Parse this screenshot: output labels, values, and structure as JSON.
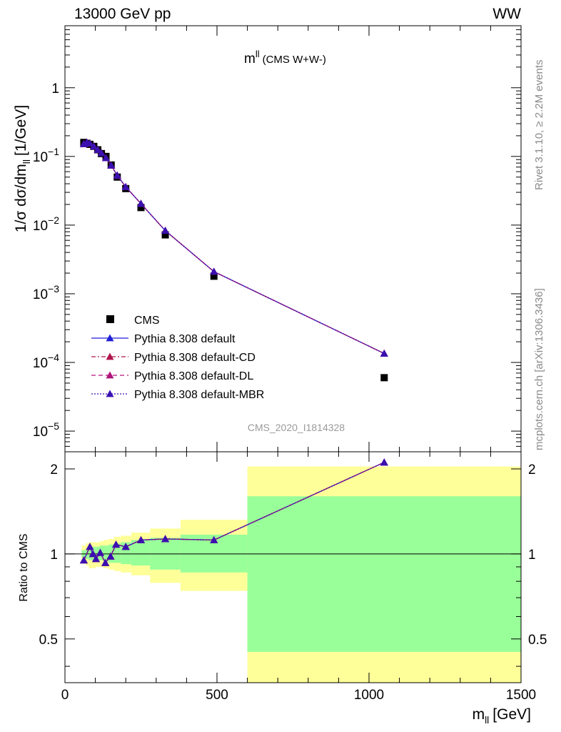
{
  "header": {
    "left": "13000 GeV pp",
    "right": "WW"
  },
  "side_labels": {
    "rivet": "Rivet 3.1.10, ≥ 2.2M events",
    "mcplots": "mcplots.cern.ch [arXiv:1306.3436]"
  },
  "analysis_id": "CMS_2020_I1814328",
  "colors": {
    "data": "#000000",
    "default": "#1f1fd6",
    "default_CD": "#b0154d",
    "default_DL": "#b0157a",
    "default_MBR": "#3a10b0",
    "band_inner": "#99ff99",
    "band_outer": "#ffff99"
  },
  "chart_data": [
    {
      "type": "scatter",
      "panel": "main",
      "title": "m",
      "title_sup": "ll",
      "title_suffix": "(CMS W+W-)",
      "xlabel": "m",
      "xlabel_sub": "ll",
      "xlabel_unit": "[GeV]",
      "ylabel": "1/σ dσ/dm",
      "ylabel_sub": "ll",
      "ylabel_unit": "[1/GeV]",
      "xlim": [
        0,
        1500
      ],
      "ylim": [
        5e-06,
        8
      ],
      "yscale": "log",
      "legend_position": "left-bottom",
      "yticks": [
        {
          "v": 1e-05,
          "base": "10",
          "exp": "−5"
        },
        {
          "v": 0.0001,
          "base": "10",
          "exp": "−4"
        },
        {
          "v": 0.001,
          "base": "10",
          "exp": "−3"
        },
        {
          "v": 0.01,
          "base": "10",
          "exp": "−2"
        },
        {
          "v": 0.1,
          "base": "10",
          "exp": "−1"
        },
        {
          "v": 1,
          "base": "1",
          "exp": ""
        }
      ],
      "series": [
        {
          "name": "CMS",
          "style": "data",
          "x": [
            62,
            72,
            82,
            95,
            108,
            120,
            135,
            152,
            172,
            200,
            250,
            330,
            490,
            1050
          ],
          "y": [
            0.16,
            0.155,
            0.15,
            0.14,
            0.125,
            0.11,
            0.1,
            0.075,
            0.05,
            0.034,
            0.018,
            0.0072,
            0.0018,
            6e-05
          ]
        },
        {
          "name": "Pythia 8.308 default",
          "style": "solid",
          "x": [
            62,
            72,
            82,
            95,
            108,
            120,
            135,
            152,
            172,
            200,
            250,
            330,
            490,
            1050
          ],
          "y": [
            0.152,
            0.16,
            0.155,
            0.14,
            0.125,
            0.112,
            0.095,
            0.074,
            0.053,
            0.036,
            0.0205,
            0.0083,
            0.0021,
            0.000135
          ]
        },
        {
          "name": "Pythia 8.308 default-CD",
          "style": "dashdot",
          "x": [
            62,
            72,
            82,
            95,
            108,
            120,
            135,
            152,
            172,
            200,
            250,
            330,
            490,
            1050
          ],
          "y": [
            0.152,
            0.16,
            0.155,
            0.14,
            0.125,
            0.112,
            0.095,
            0.074,
            0.053,
            0.036,
            0.0205,
            0.0083,
            0.0021,
            0.000135
          ]
        },
        {
          "name": "Pythia 8.308 default-DL",
          "style": "dashed",
          "x": [
            62,
            72,
            82,
            95,
            108,
            120,
            135,
            152,
            172,
            200,
            250,
            330,
            490,
            1050
          ],
          "y": [
            0.152,
            0.16,
            0.155,
            0.14,
            0.125,
            0.112,
            0.095,
            0.074,
            0.053,
            0.036,
            0.0205,
            0.0083,
            0.0021,
            0.000135
          ]
        },
        {
          "name": "Pythia 8.308 default-MBR",
          "style": "dotted",
          "x": [
            62,
            72,
            82,
            95,
            108,
            120,
            135,
            152,
            172,
            200,
            250,
            330,
            490,
            1050
          ],
          "y": [
            0.152,
            0.16,
            0.155,
            0.14,
            0.125,
            0.112,
            0.095,
            0.074,
            0.053,
            0.036,
            0.0205,
            0.0083,
            0.0021,
            0.000135
          ]
        }
      ]
    },
    {
      "type": "line",
      "panel": "ratio",
      "ylabel": "Ratio to CMS",
      "xlim": [
        0,
        1500
      ],
      "ylim": [
        0.35,
        2.3
      ],
      "yscale": "log",
      "xticks": [
        {
          "v": 0,
          "label": "0"
        },
        {
          "v": 500,
          "label": "500"
        },
        {
          "v": 1000,
          "label": "1000"
        },
        {
          "v": 1500,
          "label": "1500"
        }
      ],
      "yticks": [
        {
          "v": 0.5,
          "label": "0.5"
        },
        {
          "v": 1,
          "label": "1"
        },
        {
          "v": 2,
          "label": "2"
        }
      ],
      "bands": [
        {
          "x0": 55,
          "x1": 68,
          "inner": [
            0.97,
            1.03
          ],
          "outer": [
            0.93,
            1.07
          ]
        },
        {
          "x0": 68,
          "x1": 78,
          "inner": [
            0.96,
            1.04
          ],
          "outer": [
            0.91,
            1.09
          ]
        },
        {
          "x0": 78,
          "x1": 88,
          "inner": [
            0.95,
            1.05
          ],
          "outer": [
            0.89,
            1.1
          ]
        },
        {
          "x0": 88,
          "x1": 102,
          "inner": [
            0.95,
            1.06
          ],
          "outer": [
            0.89,
            1.1
          ]
        },
        {
          "x0": 102,
          "x1": 115,
          "inner": [
            0.95,
            1.06
          ],
          "outer": [
            0.9,
            1.1
          ]
        },
        {
          "x0": 115,
          "x1": 127,
          "inner": [
            0.95,
            1.07
          ],
          "outer": [
            0.9,
            1.11
          ]
        },
        {
          "x0": 127,
          "x1": 144,
          "inner": [
            0.94,
            1.07
          ],
          "outer": [
            0.89,
            1.12
          ]
        },
        {
          "x0": 144,
          "x1": 161,
          "inner": [
            0.93,
            1.08
          ],
          "outer": [
            0.88,
            1.13
          ]
        },
        {
          "x0": 161,
          "x1": 184,
          "inner": [
            0.93,
            1.09
          ],
          "outer": [
            0.87,
            1.15
          ]
        },
        {
          "x0": 184,
          "x1": 218,
          "inner": [
            0.92,
            1.1
          ],
          "outer": [
            0.86,
            1.16
          ]
        },
        {
          "x0": 218,
          "x1": 280,
          "inner": [
            0.91,
            1.12
          ],
          "outer": [
            0.84,
            1.19
          ]
        },
        {
          "x0": 280,
          "x1": 380,
          "inner": [
            0.88,
            1.14
          ],
          "outer": [
            0.79,
            1.23
          ]
        },
        {
          "x0": 380,
          "x1": 600,
          "inner": [
            0.86,
            1.17
          ],
          "outer": [
            0.74,
            1.32
          ]
        },
        {
          "x0": 600,
          "x1": 1500,
          "inner": [
            0.45,
            1.6
          ],
          "outer": [
            0.35,
            2.04
          ]
        }
      ],
      "series": [
        {
          "name": "Pythia 8.308 default",
          "style": "solid",
          "x": [
            62,
            82,
            92,
            102,
            116,
            133,
            150,
            168,
            200,
            250,
            330,
            490,
            1050
          ],
          "y": [
            0.95,
            1.06,
            1.0,
            0.96,
            1.01,
            0.93,
            0.98,
            1.08,
            1.06,
            1.12,
            1.13,
            1.12,
            2.11
          ]
        },
        {
          "name": "Pythia 8.308 default-CD",
          "style": "dashdot",
          "x": [
            62,
            82,
            92,
            102,
            116,
            133,
            150,
            168,
            200,
            250,
            330,
            490,
            1050
          ],
          "y": [
            0.95,
            1.06,
            1.0,
            0.96,
            1.01,
            0.93,
            0.98,
            1.08,
            1.06,
            1.12,
            1.13,
            1.12,
            2.11
          ]
        },
        {
          "name": "Pythia 8.308 default-DL",
          "style": "dashed",
          "x": [
            62,
            82,
            92,
            102,
            116,
            133,
            150,
            168,
            200,
            250,
            330,
            490,
            1050
          ],
          "y": [
            0.95,
            1.06,
            1.0,
            0.96,
            1.01,
            0.93,
            0.98,
            1.08,
            1.06,
            1.12,
            1.13,
            1.12,
            2.11
          ]
        },
        {
          "name": "Pythia 8.308 default-MBR",
          "style": "dotted",
          "x": [
            62,
            82,
            92,
            102,
            116,
            133,
            150,
            168,
            200,
            250,
            330,
            490,
            1050
          ],
          "y": [
            0.95,
            1.06,
            1.0,
            0.96,
            1.01,
            0.93,
            0.98,
            1.08,
            1.06,
            1.12,
            1.13,
            1.12,
            2.11
          ]
        }
      ]
    }
  ]
}
